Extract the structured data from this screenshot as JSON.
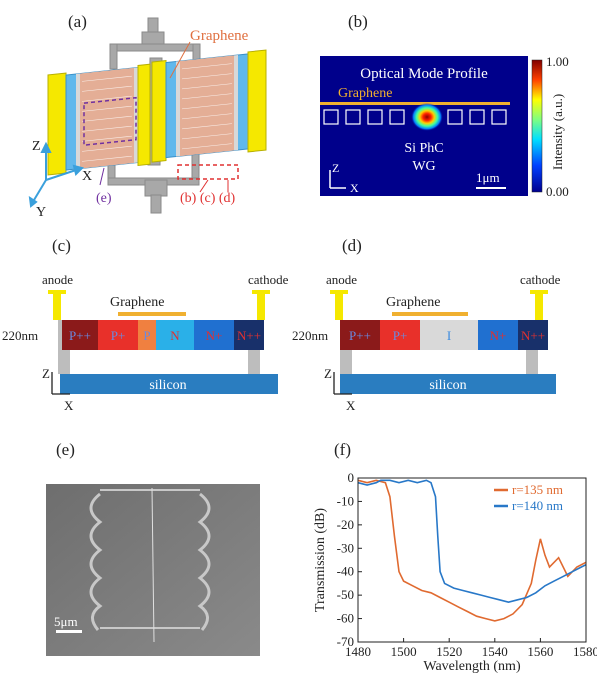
{
  "panels": {
    "a": {
      "label": "(a)",
      "graphene_label": "Graphene",
      "axis_z": "Z",
      "axis_x": "X",
      "axis_y": "Y",
      "callout_e": "(e)",
      "callout_bcd": "(b) (c) (d)"
    },
    "b": {
      "label": "(b)",
      "title": "Optical Mode Profile",
      "graphene_label": "Graphene",
      "wg_label_line1": "Si PhC",
      "wg_label_line2": "WG",
      "axis_z": "Z",
      "axis_x": "X",
      "scalebar": "1μm",
      "colorbar_label": "Intensity (a.u.)",
      "colorbar_max": "1.00",
      "colorbar_min": "0.00"
    },
    "c": {
      "label": "(c)",
      "anode": "anode",
      "cathode": "cathode",
      "graphene_label": "Graphene",
      "thickness": "220nm",
      "regions": [
        "P++",
        "P+",
        "P",
        "N",
        "N+",
        "N++"
      ],
      "substrate": "silicon",
      "axis_z": "Z",
      "axis_x": "X"
    },
    "d": {
      "label": "(d)",
      "anode": "anode",
      "cathode": "cathode",
      "graphene_label": "Graphene",
      "thickness": "220nm",
      "regions": [
        "P++",
        "P+",
        "I",
        "N+",
        "N++"
      ],
      "substrate": "silicon",
      "axis_z": "Z",
      "axis_x": "X"
    },
    "e": {
      "label": "(e)",
      "scalebar": "5μm"
    },
    "f": {
      "label": "(f)"
    }
  },
  "colors": {
    "graphene": "#f0b030",
    "electrode": "#f5e800",
    "silicon": "#2a7dc0",
    "p_plus_plus": "#8b1a1a",
    "p_plus": "#e8302a",
    "p": "#f08040",
    "n": "#2ab0e8",
    "n_plus": "#2070d0",
    "n_plus_plus": "#18306a",
    "intrinsic": "#d9d9d9",
    "series_135": "#e06a30",
    "series_140": "#2878c8"
  },
  "chart_data": {
    "type": "line",
    "title": "",
    "xlabel": "Wavelength (nm)",
    "ylabel": "Transmission (dB)",
    "xlim": [
      1480,
      1580
    ],
    "ylim": [
      -70,
      0
    ],
    "xticks": [
      1480,
      1500,
      1520,
      1540,
      1560,
      1580
    ],
    "yticks": [
      0,
      -10,
      -20,
      -30,
      -40,
      -50,
      -60,
      -70
    ],
    "legend_position": "top-right",
    "series": [
      {
        "name": "r=135 nm",
        "color": "#e06a30",
        "x": [
          1480,
          1484,
          1488,
          1492,
          1494,
          1496,
          1498,
          1500,
          1504,
          1508,
          1512,
          1516,
          1520,
          1524,
          1528,
          1532,
          1536,
          1540,
          1544,
          1548,
          1552,
          1556,
          1558,
          1560,
          1562,
          1564,
          1568,
          1572,
          1576,
          1580
        ],
        "y": [
          -1,
          -2,
          -1,
          -2,
          -8,
          -25,
          -40,
          -44,
          -46,
          -48,
          -49,
          -51,
          -53,
          -55,
          -57,
          -59,
          -60,
          -61,
          -60,
          -58,
          -54,
          -45,
          -35,
          -26,
          -33,
          -38,
          -34,
          -42,
          -38,
          -36
        ]
      },
      {
        "name": "r=140 nm",
        "color": "#2878c8",
        "x": [
          1480,
          1484,
          1488,
          1490,
          1494,
          1498,
          1502,
          1506,
          1510,
          1512,
          1514,
          1515,
          1516,
          1518,
          1522,
          1526,
          1530,
          1534,
          1538,
          1542,
          1546,
          1550,
          1554,
          1558,
          1562,
          1566,
          1570,
          1574,
          1578,
          1580
        ],
        "y": [
          -2,
          -3,
          -2,
          -1,
          -1,
          -2,
          -1,
          -2,
          -1,
          -2,
          -8,
          -25,
          -40,
          -45,
          -47,
          -48,
          -49,
          -50,
          -51,
          -52,
          -53,
          -52,
          -51,
          -49,
          -46,
          -44,
          -42,
          -40,
          -38,
          -37
        ]
      }
    ]
  }
}
